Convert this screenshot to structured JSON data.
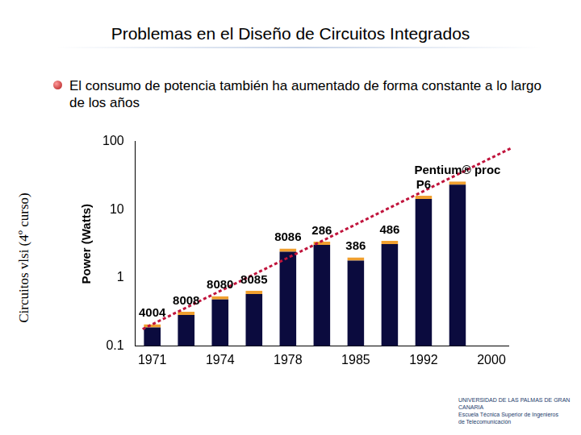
{
  "slide": {
    "title": "Problemas en el Diseño de Circuitos Integrados",
    "bullet": "El consumo de potencia también ha aumentado de forma constante a lo largo de los años",
    "side_label": "Circuitos vlsi (4º curso)",
    "logo_lines": [
      "UNIVERSIDAD DE LAS PALMAS DE GRAN CANARIA",
      "Escuela Técnica Superior de Ingenieros",
      "de Telecomunicación"
    ]
  },
  "chart_data": {
    "type": "bar",
    "y_label": "Power (Watts)",
    "categories": [
      "1971",
      null,
      "1974",
      null,
      "1978",
      null,
      "1985",
      null,
      "1992",
      null,
      "2000"
    ],
    "values": [
      0.21,
      0.32,
      0.54,
      0.65,
      2.7,
      3.4,
      2.0,
      3.5,
      16,
      26,
      null
    ],
    "bar_labels": [
      "4004",
      "8008",
      "8080",
      "8085",
      "8086",
      "286",
      "386",
      "486",
      "P6",
      "Pentium® proc",
      null
    ],
    "color": "#0b0b3e",
    "log": "y",
    "ylim": [
      0.1,
      100
    ],
    "yticks": [
      0.1,
      1,
      10,
      100
    ],
    "grid": false
  }
}
